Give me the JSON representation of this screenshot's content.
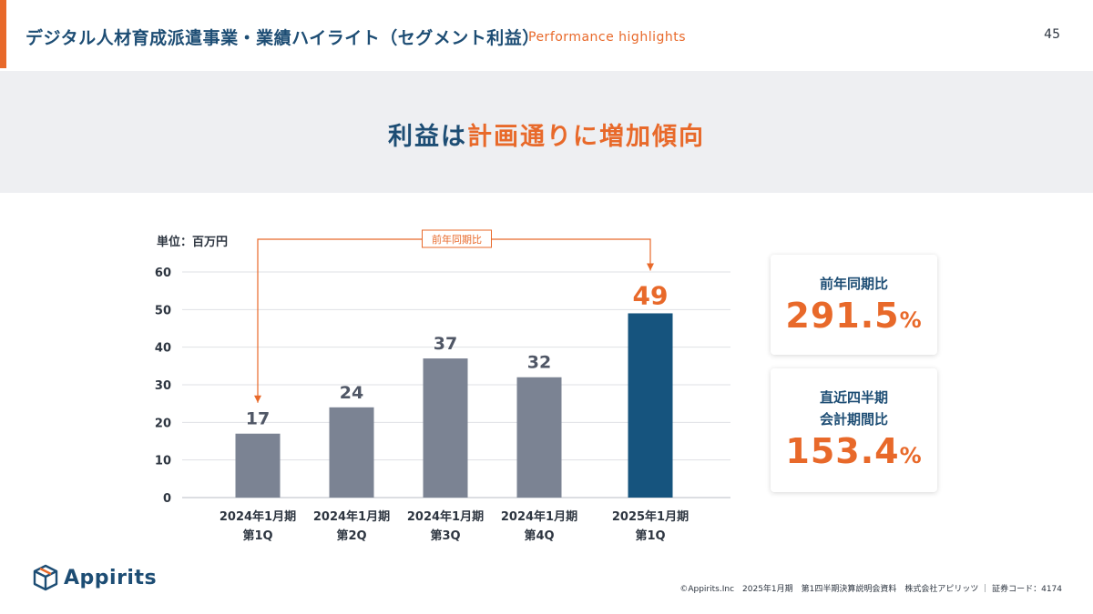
{
  "header": {
    "title": "デジタル人材育成派遣事業・業績ハイライト（セグメント利益）",
    "subtitle": "Performance highlights",
    "page_number": "45"
  },
  "banner": {
    "title_part1": "利益は",
    "title_part2": "計画通りに増加傾向"
  },
  "unit_label": "単位：百万円",
  "chart_data": {
    "type": "bar",
    "categories": [
      [
        "2024年1月期",
        "第1Q"
      ],
      [
        "2024年1月期",
        "第2Q"
      ],
      [
        "2024年1月期",
        "第3Q"
      ],
      [
        "2024年1月期",
        "第4Q"
      ],
      [
        "2025年1月期",
        "第1Q"
      ]
    ],
    "values": [
      17,
      24,
      37,
      32,
      49
    ],
    "ylim": [
      0,
      60
    ],
    "yticks": [
      0,
      10,
      20,
      30,
      40,
      50,
      60
    ],
    "grid": true,
    "colors": [
      "#7b8393",
      "#7b8393",
      "#7b8393",
      "#7b8393",
      "#16547e"
    ],
    "annotation": {
      "label": "前年同期比",
      "from_index": 0,
      "to_index": 4
    }
  },
  "cards": [
    {
      "label_lines": [
        "前年同期比"
      ],
      "value": "291.5",
      "unit": "%"
    },
    {
      "label_lines": [
        "直近四半期",
        "会計期間比"
      ],
      "value": "153.4",
      "unit": "%"
    }
  ],
  "logo": {
    "text": "Appirits",
    "icon": "box-logo-icon"
  },
  "footer": "©Appirits.Inc　2025年1月期　第1四半期決算説明会資料　株式会社アピリッツ ｜ 証券コード：4174",
  "colors": {
    "accent": "#e8692a",
    "navy": "#1d4d74",
    "bar_gray": "#7b8393",
    "bar_highlight": "#16547e"
  }
}
